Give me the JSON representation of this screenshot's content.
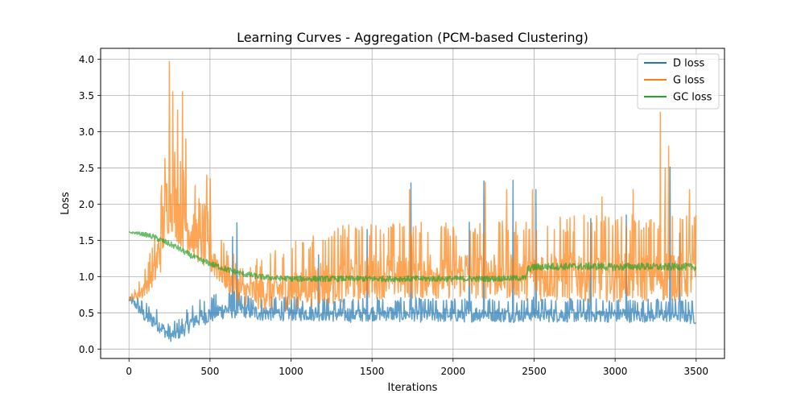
{
  "chart_data": {
    "type": "line",
    "title": "Learning Curves - Aggregation (PCM-based Clustering)",
    "xlabel": "Iterations",
    "ylabel": "Loss",
    "xlim": [
      -175,
      3675
    ],
    "ylim": [
      -0.13,
      4.15
    ],
    "xticks": [
      0,
      500,
      1000,
      1500,
      2000,
      2500,
      3000,
      3500
    ],
    "yticks": [
      0.0,
      0.5,
      1.0,
      1.5,
      2.0,
      2.5,
      3.0,
      3.5,
      4.0
    ],
    "xtick_labels": [
      "0",
      "500",
      "1000",
      "1500",
      "2000",
      "2500",
      "3000",
      "3500"
    ],
    "ytick_labels": [
      "0.0",
      "0.5",
      "1.0",
      "1.5",
      "2.0",
      "2.5",
      "3.0",
      "3.5",
      "4.0"
    ],
    "grid": true,
    "legend_position": "top-right",
    "series": [
      {
        "name": "D loss",
        "color": "#1f77b4",
        "x": [
          0,
          50,
          100,
          150,
          200,
          250,
          300,
          350,
          400,
          450,
          500,
          550,
          600,
          650,
          700,
          750,
          800,
          900,
          1000,
          1100,
          1200,
          1300,
          1400,
          1500,
          1600,
          1700,
          1750,
          1800,
          1900,
          2000,
          2100,
          2200,
          2300,
          2370,
          2400,
          2500,
          2600,
          2700,
          2800,
          2900,
          3000,
          3100,
          3200,
          3300,
          3340,
          3400,
          3500
        ],
        "y": [
          0.68,
          0.6,
          0.45,
          0.4,
          0.3,
          0.18,
          0.22,
          0.3,
          0.4,
          0.45,
          0.48,
          0.52,
          0.55,
          0.55,
          0.55,
          0.52,
          0.5,
          0.5,
          0.5,
          0.5,
          0.5,
          0.48,
          0.48,
          0.5,
          0.5,
          0.48,
          0.5,
          0.48,
          0.48,
          0.48,
          0.48,
          0.5,
          0.48,
          0.48,
          0.48,
          0.5,
          0.48,
          0.48,
          0.48,
          0.48,
          0.48,
          0.48,
          0.48,
          0.48,
          0.48,
          0.48,
          0.45
        ],
        "noise": [
          0.02,
          0.1,
          0.12,
          0.14,
          0.12,
          0.1,
          0.12,
          0.14,
          0.16,
          0.16,
          0.16,
          0.16,
          0.16,
          0.16,
          0.14,
          0.14,
          0.14,
          0.14,
          0.14,
          0.14,
          0.14,
          0.14,
          0.14,
          0.14,
          0.14,
          0.14,
          0.14,
          0.14,
          0.14,
          0.14,
          0.14,
          0.14,
          0.14,
          0.14,
          0.14,
          0.14,
          0.14,
          0.14,
          0.14,
          0.14,
          0.14,
          0.14,
          0.14,
          0.14,
          0.14,
          0.14,
          0.14
        ],
        "spikes": [
          [
            640,
            1.55
          ],
          [
            665,
            1.74
          ],
          [
            1170,
            1.3
          ],
          [
            1470,
            1.65
          ],
          [
            1740,
            2.29
          ],
          [
            2100,
            1.75
          ],
          [
            2190,
            2.32
          ],
          [
            2370,
            2.33
          ],
          [
            2510,
            2.2
          ],
          [
            2850,
            1.8
          ],
          [
            3070,
            1.85
          ],
          [
            3340,
            2.51
          ],
          [
            3400,
            1.6
          ]
        ]
      },
      {
        "name": "G loss",
        "color": "#ff7f0e",
        "x": [
          0,
          30,
          80,
          120,
          160,
          200,
          230,
          260,
          300,
          350,
          400,
          450,
          500,
          550,
          600,
          650,
          700,
          750,
          800,
          900,
          1000,
          1100,
          1200,
          1300,
          1400,
          1500,
          1600,
          1700,
          1800,
          1900,
          2000,
          2100,
          2200,
          2300,
          2400,
          2500,
          2600,
          2700,
          2800,
          2900,
          3000,
          3100,
          3200,
          3300,
          3400,
          3500
        ],
        "y": [
          0.7,
          0.72,
          0.8,
          0.95,
          1.1,
          1.5,
          2.0,
          2.1,
          1.9,
          1.7,
          1.6,
          1.45,
          1.3,
          1.15,
          1.0,
          0.9,
          0.8,
          0.8,
          0.78,
          0.8,
          0.85,
          0.9,
          0.95,
          1.0,
          1.0,
          1.05,
          1.05,
          1.05,
          1.05,
          1.05,
          1.05,
          1.05,
          1.05,
          1.05,
          1.05,
          1.05,
          1.05,
          1.05,
          1.05,
          1.05,
          1.05,
          1.05,
          1.05,
          1.05,
          1.05,
          1.1
        ],
        "noise": [
          0.02,
          0.05,
          0.15,
          0.2,
          0.3,
          0.55,
          0.6,
          0.6,
          0.55,
          0.5,
          0.45,
          0.4,
          0.35,
          0.3,
          0.25,
          0.25,
          0.25,
          0.25,
          0.3,
          0.35,
          0.4,
          0.4,
          0.45,
          0.45,
          0.45,
          0.45,
          0.45,
          0.45,
          0.45,
          0.45,
          0.45,
          0.45,
          0.45,
          0.45,
          0.45,
          0.5,
          0.5,
          0.5,
          0.5,
          0.5,
          0.5,
          0.5,
          0.5,
          0.5,
          0.5,
          0.5
        ],
        "spikes": [
          [
            250,
            3.97
          ],
          [
            270,
            3.55
          ],
          [
            300,
            3.3
          ],
          [
            330,
            3.55
          ],
          [
            350,
            2.9
          ],
          [
            480,
            2.4
          ],
          [
            500,
            2.35
          ],
          [
            1730,
            2.2
          ],
          [
            2200,
            2.3
          ],
          [
            2330,
            2.2
          ],
          [
            2490,
            2.2
          ],
          [
            2920,
            2.1
          ],
          [
            3110,
            2.2
          ],
          [
            3280,
            3.27
          ],
          [
            3310,
            2.5
          ],
          [
            3330,
            2.8
          ],
          [
            3460,
            2.2
          ]
        ]
      },
      {
        "name": "GC loss",
        "color": "#2ca02c",
        "x": [
          0,
          50,
          100,
          150,
          200,
          250,
          300,
          350,
          400,
          450,
          500,
          550,
          600,
          650,
          700,
          750,
          800,
          900,
          1000,
          1200,
          1400,
          1600,
          1800,
          2000,
          2200,
          2400,
          2450,
          2460,
          2500,
          2600,
          2700,
          2800,
          2900,
          3000,
          3100,
          3200,
          3300,
          3400,
          3500
        ],
        "y": [
          1.61,
          1.6,
          1.58,
          1.55,
          1.5,
          1.45,
          1.4,
          1.33,
          1.27,
          1.22,
          1.18,
          1.14,
          1.1,
          1.07,
          1.04,
          1.02,
          1.0,
          0.98,
          0.97,
          0.97,
          0.97,
          0.97,
          0.97,
          0.97,
          0.97,
          0.98,
          0.98,
          1.1,
          1.13,
          1.14,
          1.14,
          1.14,
          1.14,
          1.13,
          1.14,
          1.14,
          1.13,
          1.14,
          1.13
        ],
        "noise": [
          0.01,
          0.02,
          0.03,
          0.04,
          0.04,
          0.04,
          0.04,
          0.04,
          0.04,
          0.04,
          0.04,
          0.04,
          0.04,
          0.04,
          0.04,
          0.04,
          0.04,
          0.04,
          0.04,
          0.04,
          0.04,
          0.04,
          0.04,
          0.04,
          0.04,
          0.04,
          0.04,
          0.05,
          0.05,
          0.05,
          0.05,
          0.05,
          0.05,
          0.05,
          0.05,
          0.05,
          0.05,
          0.05,
          0.05
        ],
        "spikes": []
      }
    ]
  }
}
